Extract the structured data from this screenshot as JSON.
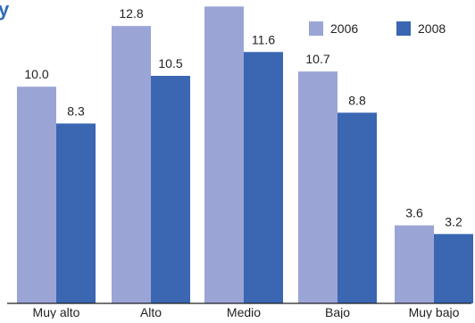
{
  "chart_data": {
    "type": "bar",
    "title": "",
    "xlabel": "",
    "ylabel": "",
    "categories": [
      "Muy alto",
      "Alto",
      "Medio",
      "Bajo",
      "Muy bajo"
    ],
    "series": [
      {
        "name": "2006",
        "values": [
          10.0,
          12.8,
          13.7,
          10.7,
          3.6
        ],
        "color": "#9aa5d6"
      },
      {
        "name": "2008",
        "values": [
          8.3,
          10.5,
          11.6,
          8.8,
          3.2
        ],
        "color": "#3a66b2"
      }
    ],
    "ylim": [
      0,
      14
    ],
    "value_format_decimals": 1,
    "grid": false,
    "legend_placement": "top-right",
    "colors": {
      "axis": "#222222",
      "text": "#222222",
      "accent_title": "#2f6db5"
    }
  }
}
